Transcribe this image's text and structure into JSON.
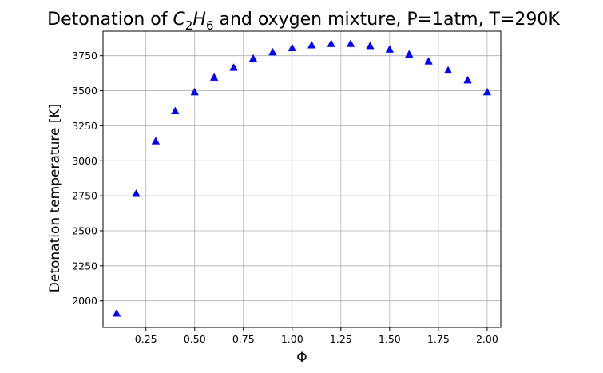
{
  "chart_data": {
    "type": "scatter",
    "title_main": "Detonation of ",
    "title_chem": "C",
    "title_sub1": "2",
    "title_h": "H",
    "title_sub2": "6",
    "title_rest": " and oxygen mixture, P=1atm, T=290K",
    "xlabel": "Φ",
    "ylabel": "Detonation temperature [K]",
    "xlim": [
      0.03,
      2.07
    ],
    "ylim": [
      1810,
      3925
    ],
    "grid": true,
    "marker": "triangle-up",
    "color": "#0000ff",
    "x_ticks": [
      0.25,
      0.5,
      0.75,
      1.0,
      1.25,
      1.5,
      1.75,
      2.0
    ],
    "x_tick_labels": [
      "0.25",
      "0.50",
      "0.75",
      "1.00",
      "1.25",
      "1.50",
      "1.75",
      "2.00"
    ],
    "y_ticks": [
      2000,
      2250,
      2500,
      2750,
      3000,
      3250,
      3500,
      3750
    ],
    "y_tick_labels": [
      "2000",
      "2250",
      "2500",
      "2750",
      "3000",
      "3250",
      "3500",
      "3750"
    ],
    "x": [
      0.1,
      0.2,
      0.3,
      0.4,
      0.5,
      0.6,
      0.7,
      0.8,
      0.9,
      1.0,
      1.1,
      1.2,
      1.3,
      1.4,
      1.5,
      1.6,
      1.7,
      1.8,
      1.9,
      2.0
    ],
    "y": [
      1910,
      2765,
      3140,
      3355,
      3490,
      3595,
      3665,
      3730,
      3775,
      3805,
      3825,
      3835,
      3835,
      3820,
      3795,
      3760,
      3710,
      3645,
      3575,
      3490
    ]
  }
}
